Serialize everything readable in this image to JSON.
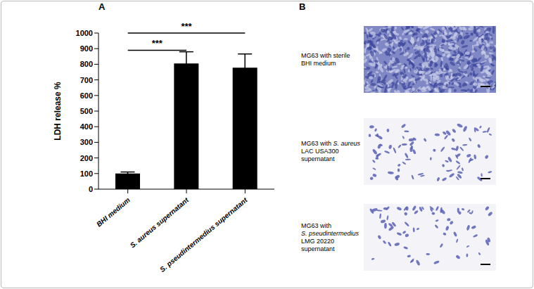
{
  "chart_data": {
    "type": "bar",
    "panel": "A",
    "y_label": "LDH release %",
    "categories": [
      "BHI medium",
      "S. aureus supernatant",
      "S. pseudintermedius supernatant"
    ],
    "values": [
      100,
      805,
      778
    ],
    "errors": [
      10,
      75,
      88
    ],
    "color": "#000000",
    "ylim": [
      0,
      1000
    ],
    "yticks": [
      0,
      100,
      200,
      300,
      400,
      500,
      600,
      700,
      800,
      900,
      1000
    ],
    "significance": [
      {
        "from": "BHI medium",
        "to": "S. aureus supernatant",
        "y": 890,
        "label": "***"
      },
      {
        "from": "BHI medium",
        "to": "S. pseudintermedius supernatant",
        "y": 1000,
        "label": "***"
      }
    ]
  },
  "panel_b": {
    "label": "B",
    "images": [
      {
        "lines": [
          [
            {
              "text": "MG63 with sterile",
              "italic": false
            }
          ],
          [
            {
              "text": "BHI medium",
              "italic": false
            }
          ]
        ]
      },
      {
        "lines": [
          [
            {
              "text": "MG63 with ",
              "italic": false
            },
            {
              "text": "S. aureus",
              "italic": true
            }
          ],
          [
            {
              "text": "LAC USA300",
              "italic": false
            }
          ],
          [
            {
              "text": "supernatant",
              "italic": false
            }
          ]
        ]
      },
      {
        "lines": [
          [
            {
              "text": "MG63 with",
              "italic": false
            }
          ],
          [
            {
              "text": "S. pseudintermedius",
              "italic": true
            }
          ],
          [
            {
              "text": "LMG 20220",
              "italic": false
            }
          ],
          [
            {
              "text": "supernatant",
              "italic": false
            }
          ]
        ]
      }
    ]
  }
}
